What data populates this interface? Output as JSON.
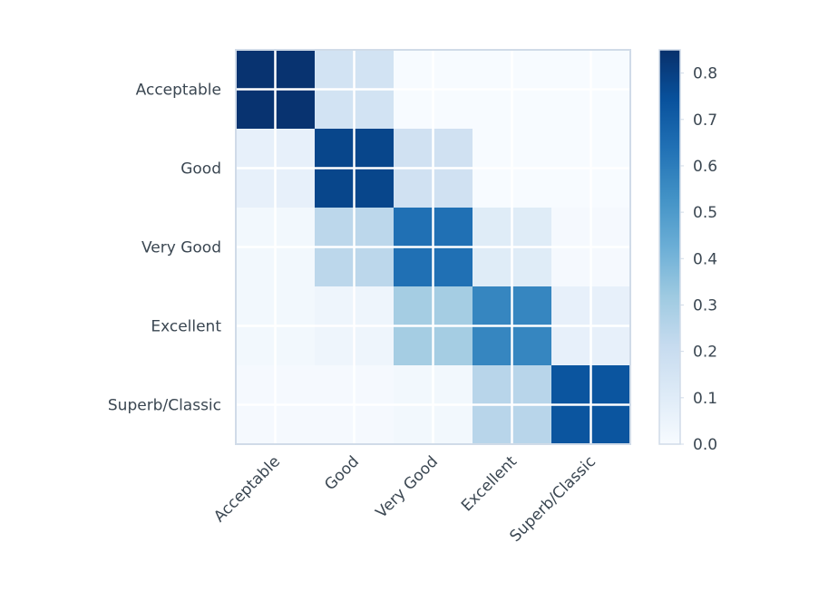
{
  "chart_data": {
    "type": "heatmap",
    "title": "",
    "xlabel": "",
    "ylabel": "",
    "categories_x": [
      "Acceptable",
      "Good",
      "Very Good",
      "Excellent",
      "Superb/Classic"
    ],
    "categories_y": [
      "Acceptable",
      "Good",
      "Very Good",
      "Excellent",
      "Superb/Classic"
    ],
    "values": [
      [
        0.84,
        0.16,
        0.0,
        0.0,
        0.0
      ],
      [
        0.07,
        0.78,
        0.17,
        0.0,
        0.0
      ],
      [
        0.02,
        0.24,
        0.64,
        0.1,
        0.01
      ],
      [
        0.02,
        0.04,
        0.3,
        0.57,
        0.07
      ],
      [
        0.01,
        0.01,
        0.02,
        0.25,
        0.73
      ]
    ],
    "colorbar": {
      "min": 0.0,
      "max": 0.85,
      "ticks": [
        "0.0",
        "0.1",
        "0.2",
        "0.3",
        "0.4",
        "0.5",
        "0.6",
        "0.7",
        "0.8"
      ]
    },
    "colormap": "Blues",
    "grid": true,
    "gridColor": "#ffffff",
    "spineColor": "#d0dbe8"
  }
}
